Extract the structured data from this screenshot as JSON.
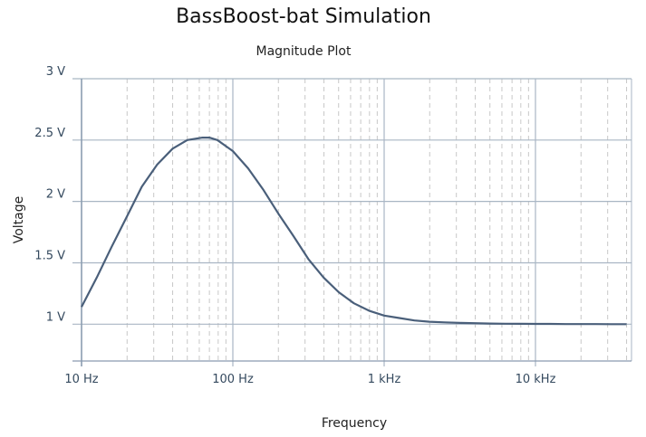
{
  "title": "BassBoost-bat Simulation",
  "subtitle": "Magnitude Plot",
  "chart_data": {
    "type": "line",
    "title": "BassBoost-bat Simulation",
    "subtitle": "Magnitude Plot",
    "xlabel": "Frequency",
    "ylabel": "Voltage",
    "x_scale": "log",
    "xlim": [
      10,
      45000
    ],
    "ylim": [
      0.7,
      3
    ],
    "x_ticks": [
      {
        "value": 10,
        "label": "10 Hz"
      },
      {
        "value": 100,
        "label": "100 Hz"
      },
      {
        "value": 1000,
        "label": "1 kHz"
      },
      {
        "value": 10000,
        "label": "10 kHz"
      }
    ],
    "y_ticks": [
      {
        "value": 1,
        "label": "1 V"
      },
      {
        "value": 1.5,
        "label": "1.5 V"
      },
      {
        "value": 2,
        "label": "2 V"
      },
      {
        "value": 2.5,
        "label": "2.5 V"
      },
      {
        "value": 3,
        "label": "3 V"
      }
    ],
    "grid": true,
    "line_color": "#4a5f7a",
    "series": [
      {
        "x": [
          10,
          12.6,
          15.8,
          20,
          25,
          31.6,
          40,
          50,
          63,
          70,
          79,
          100,
          126,
          158,
          200,
          251,
          316,
          398,
          501,
          631,
          794,
          1000,
          1259,
          1585,
          1995,
          2512,
          3162,
          3981,
          5012,
          6310,
          7943,
          10000,
          12589,
          15849,
          19953,
          25119,
          31623,
          40000
        ],
        "y": [
          1.14,
          1.38,
          1.63,
          1.88,
          2.12,
          2.3,
          2.43,
          2.5,
          2.52,
          2.52,
          2.5,
          2.41,
          2.27,
          2.1,
          1.9,
          1.72,
          1.53,
          1.38,
          1.26,
          1.17,
          1.11,
          1.07,
          1.05,
          1.03,
          1.02,
          1.015,
          1.01,
          1.008,
          1.005,
          1.004,
          1.003,
          1.002,
          1.002,
          1.001,
          1.001,
          1.001,
          1.0,
          1.0
        ]
      }
    ]
  }
}
